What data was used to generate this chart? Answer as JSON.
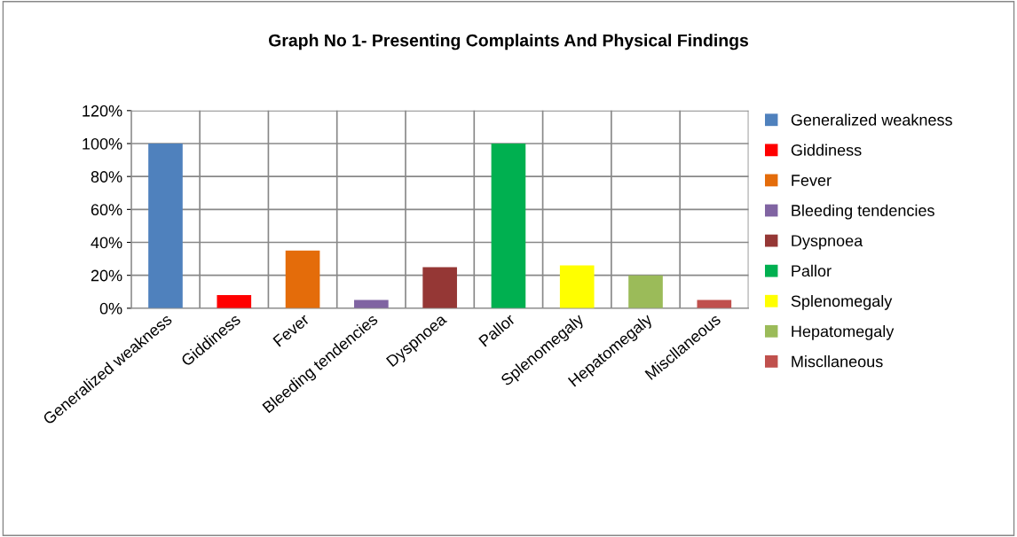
{
  "chart_data": {
    "type": "bar",
    "title": "Graph No 1- Presenting Complaints And Physical Findings",
    "categories": [
      "Generalized weakness",
      "Giddiness",
      "Fever",
      "Bleeding tendencies",
      "Dyspnoea",
      "Pallor",
      "Splenomegaly",
      "Hepatomegaly",
      "Miscllaneous"
    ],
    "series": [
      {
        "name": "Generalized weakness",
        "color": "#4f81bd",
        "values": [
          100,
          null,
          null,
          null,
          null,
          null,
          null,
          null,
          null
        ]
      },
      {
        "name": "Giddiness",
        "color": "#ff0000",
        "values": [
          null,
          8,
          null,
          null,
          null,
          null,
          null,
          null,
          null
        ]
      },
      {
        "name": "Fever",
        "color": "#e46c0a",
        "values": [
          null,
          null,
          35,
          null,
          null,
          null,
          null,
          null,
          null
        ]
      },
      {
        "name": "Bleeding tendencies",
        "color": "#8064a2",
        "values": [
          null,
          null,
          null,
          5,
          null,
          null,
          null,
          null,
          null
        ]
      },
      {
        "name": "Dyspnoea",
        "color": "#953735",
        "values": [
          null,
          null,
          null,
          null,
          25,
          null,
          null,
          null,
          null
        ]
      },
      {
        "name": "Pallor",
        "color": "#00b050",
        "values": [
          null,
          null,
          null,
          null,
          null,
          100,
          null,
          null,
          null
        ]
      },
      {
        "name": "Splenomegaly",
        "color": "#ffff00",
        "values": [
          null,
          null,
          null,
          null,
          null,
          null,
          26,
          null,
          null
        ]
      },
      {
        "name": "Hepatomegaly",
        "color": "#9bbb59",
        "values": [
          null,
          null,
          null,
          null,
          null,
          null,
          null,
          20,
          null
        ]
      },
      {
        "name": "Miscllaneous",
        "color": "#c0504d",
        "values": [
          null,
          null,
          null,
          null,
          null,
          null,
          null,
          null,
          5
        ]
      }
    ],
    "ylim": [
      0,
      120
    ],
    "yticks": [
      {
        "value": 0,
        "label": "0%"
      },
      {
        "value": 20,
        "label": "20%"
      },
      {
        "value": 40,
        "label": "40%"
      },
      {
        "value": 60,
        "label": "60%"
      },
      {
        "value": 80,
        "label": "80%"
      },
      {
        "value": 100,
        "label": "100%"
      },
      {
        "value": 120,
        "label": "120%"
      }
    ],
    "grid": true,
    "legend": "right"
  }
}
